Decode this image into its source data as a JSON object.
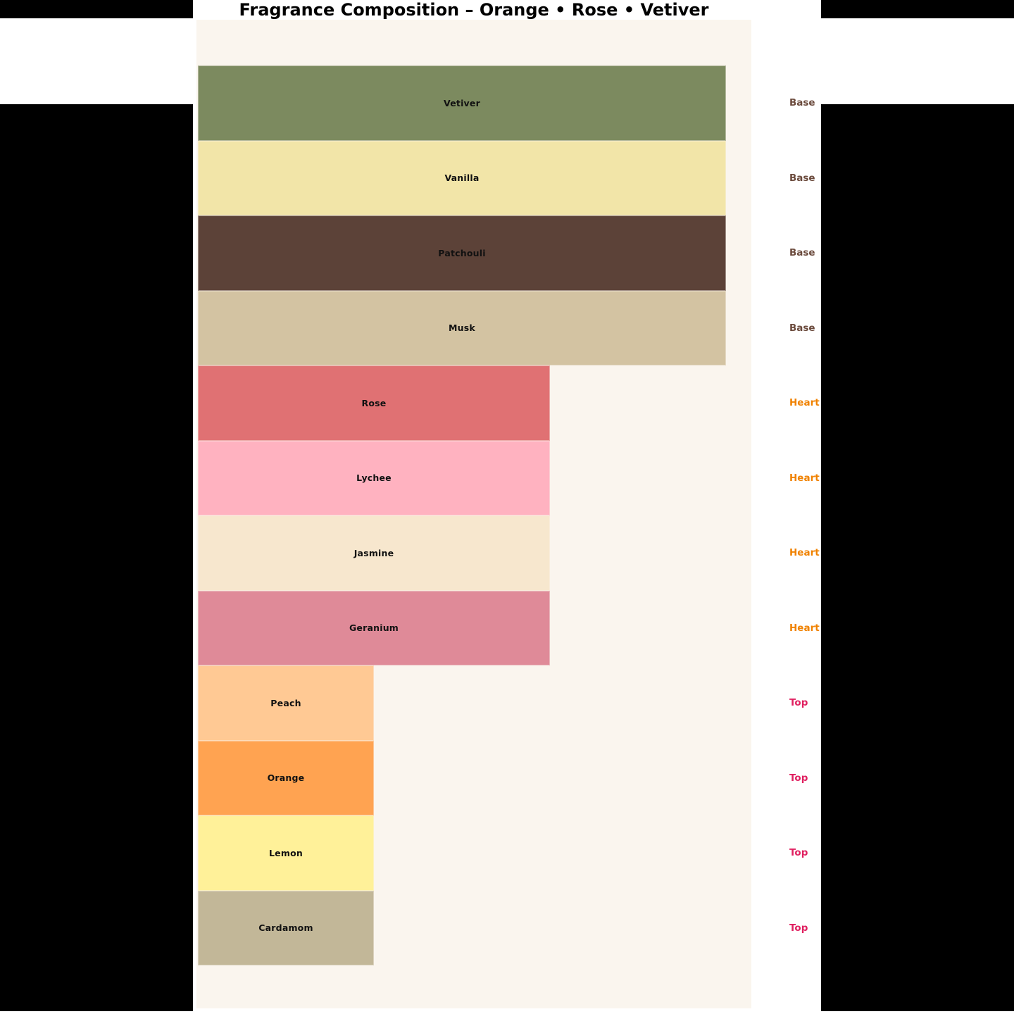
{
  "chart_data": {
    "type": "bar",
    "orientation": "horizontal",
    "title": "Fragrance Composition – Orange • Rose • Vetiver",
    "xlim": [
      0,
      3.15
    ],
    "grid": false,
    "legend": "none",
    "bar_label_position": "inside-center",
    "group_label_position": "right-margin",
    "plot_bg": "#FAF5EE",
    "notes": [
      {
        "label": "Vetiver",
        "group": "Base",
        "value": 3,
        "color": "#7C8A5F"
      },
      {
        "label": "Vanilla",
        "group": "Base",
        "value": 3,
        "color": "#F2E5A8"
      },
      {
        "label": "Patchouli",
        "group": "Base",
        "value": 3,
        "color": "#5C4238"
      },
      {
        "label": "Musk",
        "group": "Base",
        "value": 3,
        "color": "#D3C3A2"
      },
      {
        "label": "Rose",
        "group": "Heart",
        "value": 2,
        "color": "#E07173"
      },
      {
        "label": "Lychee",
        "group": "Heart",
        "value": 2,
        "color": "#FFB2C0"
      },
      {
        "label": "Jasmine",
        "group": "Heart",
        "value": 2,
        "color": "#F7E7CE"
      },
      {
        "label": "Geranium",
        "group": "Heart",
        "value": 2,
        "color": "#DF8A98"
      },
      {
        "label": "Peach",
        "group": "Top",
        "value": 1,
        "color": "#FFC994"
      },
      {
        "label": "Orange",
        "group": "Top",
        "value": 1,
        "color": "#FFA351"
      },
      {
        "label": "Lemon",
        "group": "Top",
        "value": 1,
        "color": "#FFF199"
      },
      {
        "label": "Cardamom",
        "group": "Top",
        "value": 1,
        "color": "#C2B798"
      }
    ],
    "group_colors": {
      "Base": "#6B4A3C",
      "Heart": "#F08200",
      "Top": "#E02060"
    }
  },
  "colors": {
    "canvas": "#000000",
    "figure_bg": "#FFFFFF",
    "plot_bg": "#FAF5EE",
    "title_text": "#000000",
    "bar_label_text": "#111111"
  }
}
